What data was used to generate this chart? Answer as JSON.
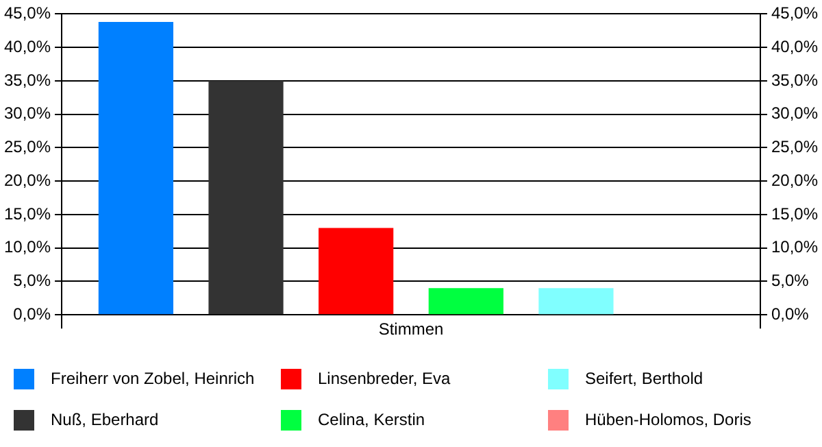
{
  "chart_data": {
    "type": "bar",
    "xlabel": "Stimmen",
    "categories": [
      null
    ],
    "series": [
      {
        "name": "Freiherr von Zobel, Heinrich",
        "color": "#0080ff",
        "values": [
          43.8
        ]
      },
      {
        "name": "Nuß, Eberhard",
        "color": "#333333",
        "values": [
          35
        ]
      },
      {
        "name": "Linsenbreder, Eva",
        "color": "#ff0000",
        "values": [
          13
        ]
      },
      {
        "name": "Celina, Kerstin",
        "color": "#00ff40",
        "values": [
          4
        ]
      },
      {
        "name": "Seifert, Berthold",
        "color": "#80ffff",
        "values": [
          4
        ]
      },
      {
        "name": "Hüben-Holomos, Doris",
        "color": "#ff8080",
        "values": [
          0
        ]
      }
    ],
    "ylim": [
      0,
      45
    ],
    "yticks": [
      {
        "value": 0,
        "label": "0,0%"
      },
      {
        "value": 5,
        "label": "5,0%"
      },
      {
        "value": 10,
        "label": "10,0%"
      },
      {
        "value": 15,
        "label": "15,0%"
      },
      {
        "value": 20,
        "label": "20,0%"
      },
      {
        "value": 25,
        "label": "25,0%"
      },
      {
        "value": 30,
        "label": "30,0%"
      },
      {
        "value": 35,
        "label": "35,0%"
      },
      {
        "value": 40,
        "label": "40,0%"
      },
      {
        "value": 45,
        "label": "45,0%"
      }
    ],
    "y2lim": [
      0,
      45
    ],
    "y2ticks": [
      {
        "value": 0,
        "label": "0,0%"
      },
      {
        "value": 5,
        "label": "5,0%"
      },
      {
        "value": 10,
        "label": "10,0%"
      },
      {
        "value": 15,
        "label": "15,0%"
      },
      {
        "value": 20,
        "label": "20,0%"
      },
      {
        "value": 25,
        "label": "25,0%"
      },
      {
        "value": 30,
        "label": "30,0%"
      },
      {
        "value": 35,
        "label": "35,0%"
      },
      {
        "value": 40,
        "label": "40,0%"
      },
      {
        "value": 45,
        "label": "45,0%"
      }
    ],
    "grid": "y",
    "legend": "bottom"
  }
}
